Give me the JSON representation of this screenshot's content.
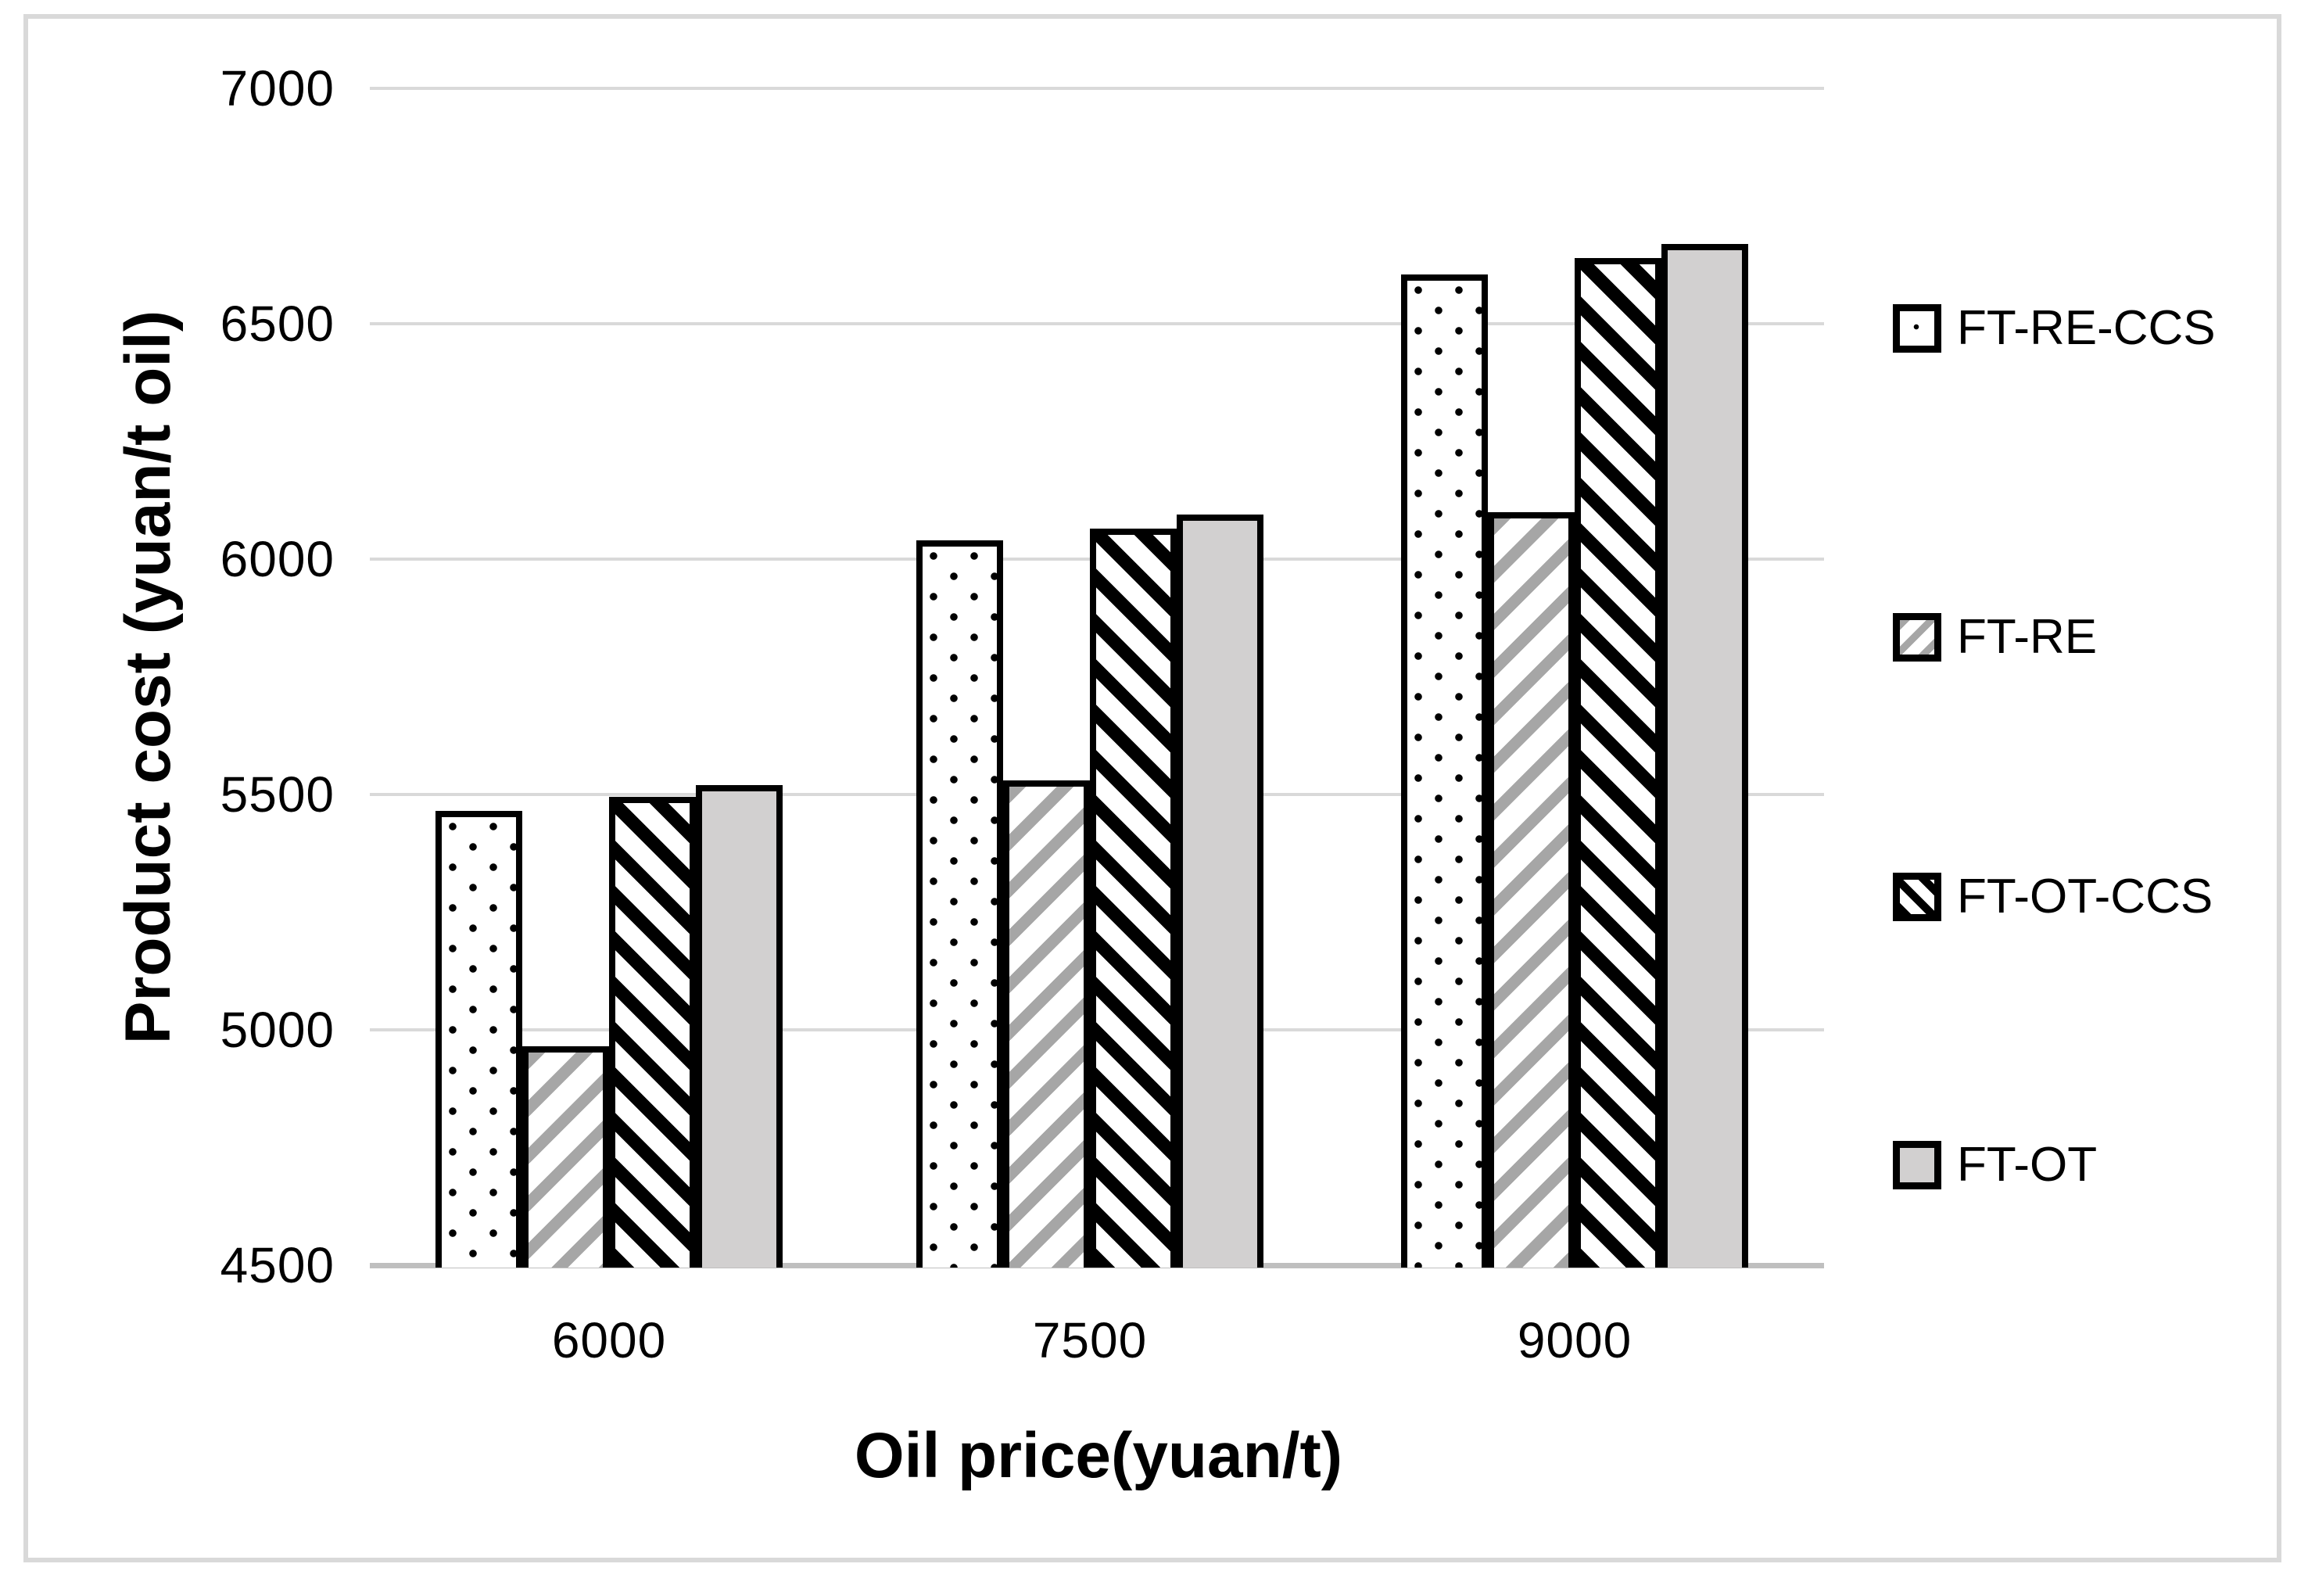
{
  "chart_data": {
    "type": "bar",
    "title": "",
    "xlabel": "Oil price(yuan/t)",
    "ylabel": "Product cost (yuan/t oil)",
    "categories": [
      "6000",
      "7500",
      "9000"
    ],
    "series": [
      {
        "name": "FT-RE-CCS",
        "pattern": "dots",
        "values": [
          5465,
          6040,
          6605
        ]
      },
      {
        "name": "FT-RE",
        "pattern": "hatch-re",
        "values": [
          4965,
          5530,
          6100
        ]
      },
      {
        "name": "FT-OT-CCS",
        "pattern": "hatch-ot",
        "values": [
          5495,
          6065,
          6640
        ]
      },
      {
        "name": "FT-OT",
        "pattern": "solid",
        "values": [
          5520,
          6095,
          6670
        ]
      }
    ],
    "ylim": [
      4500,
      7000
    ],
    "ytick_labels": [
      "7000",
      "6500",
      "6000",
      "5500",
      "5000",
      "4500"
    ],
    "grid": true,
    "legend_position": "right",
    "legend_labels": [
      "FT-RE-CCS",
      "FT-RE",
      "FT-OT-CCS",
      "FT-OT"
    ],
    "colors": {
      "bar_outline": "#000000",
      "dot_black": "#000000",
      "hatch_gray": "#a6a6a6",
      "solid_gray": "#d2d0d0",
      "bar_fill": "#ffffff",
      "gridline": "#d9d9d9",
      "axis_line": "#bfbfbf",
      "frame_border": "#d9d9d9",
      "text": "#000000",
      "background": "#ffffff"
    }
  }
}
